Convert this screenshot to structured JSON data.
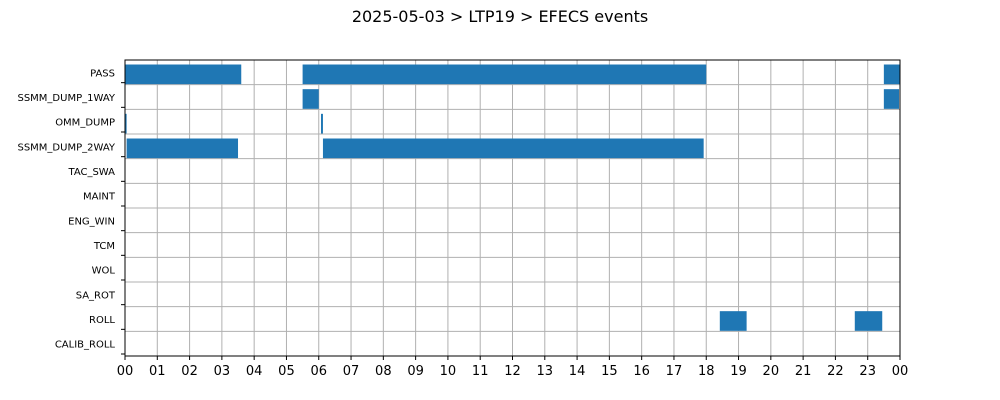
{
  "chart_data": {
    "type": "timeline",
    "title": "2025-05-03 > LTP19 > EFECS events",
    "x_unit": "hour",
    "xlim": [
      0,
      24
    ],
    "x_tick_labels": [
      "00",
      "01",
      "02",
      "03",
      "04",
      "05",
      "06",
      "07",
      "08",
      "09",
      "10",
      "11",
      "12",
      "13",
      "14",
      "15",
      "16",
      "17",
      "18",
      "19",
      "20",
      "21",
      "22",
      "23",
      "00"
    ],
    "grid": true,
    "bar_color": "#1f77b4",
    "rows": [
      {
        "label": "PASS",
        "events": [
          [
            0.0,
            3.6
          ],
          [
            5.5,
            18.0
          ],
          [
            23.5,
            24.0
          ]
        ]
      },
      {
        "label": "SSMM_DUMP_1WAY",
        "events": [
          [
            5.5,
            6.0
          ],
          [
            23.5,
            23.97
          ]
        ]
      },
      {
        "label": "OMM_DUMP",
        "events": [
          [
            0.0,
            0.05
          ],
          [
            6.07,
            6.13
          ]
        ]
      },
      {
        "label": "SSMM_DUMP_2WAY",
        "events": [
          [
            0.05,
            3.5
          ],
          [
            6.13,
            17.92
          ]
        ]
      },
      {
        "label": "TAC_SWA",
        "events": []
      },
      {
        "label": "MAINT",
        "events": []
      },
      {
        "label": "ENG_WIN",
        "events": []
      },
      {
        "label": "TCM",
        "events": []
      },
      {
        "label": "WOL",
        "events": []
      },
      {
        "label": "SA_ROT",
        "events": []
      },
      {
        "label": "ROLL",
        "events": [
          [
            18.42,
            19.25
          ],
          [
            22.6,
            23.45
          ]
        ]
      },
      {
        "label": "CALIB_ROLL",
        "events": []
      }
    ]
  }
}
